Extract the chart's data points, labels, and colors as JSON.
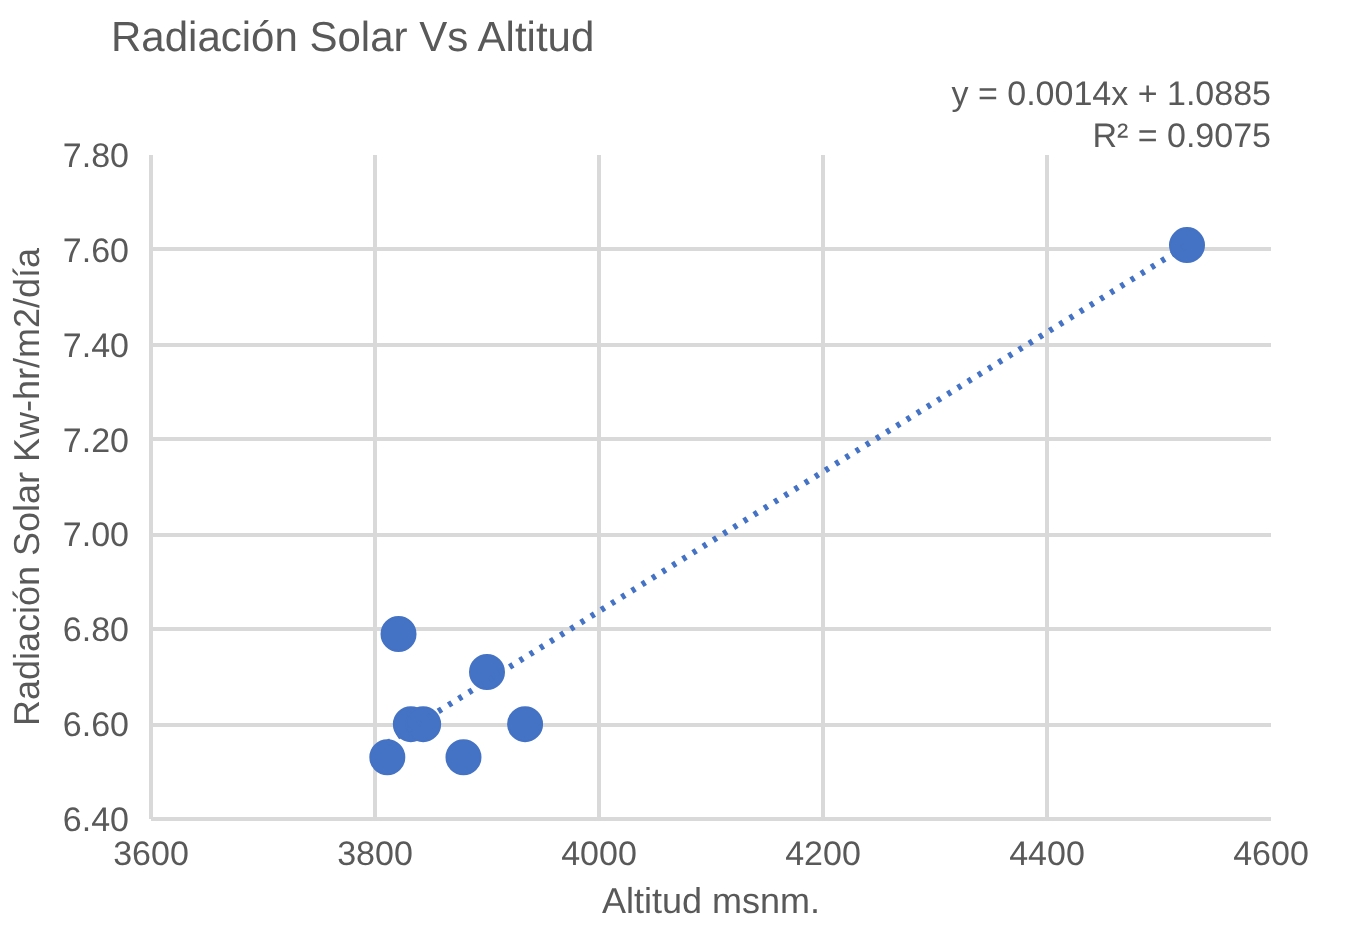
{
  "chart_data": {
    "type": "scatter",
    "title": "Radiación Solar Vs Altitud",
    "xlabel": "Altitud msnm.",
    "ylabel": "Radiación Solar Kw-hr/m2/día",
    "annotations": [
      "y = 0.0014x + 1.0885",
      "R² = 0.9075"
    ],
    "series": [
      {
        "color": "#4472c4",
        "x": [
          3821,
          3900,
          3832,
          3843,
          3811,
          3879,
          3934,
          4525
        ],
        "values": [
          6.79,
          6.71,
          6.6,
          6.6,
          6.53,
          6.53,
          6.6,
          7.61
        ],
        "marker": "circle"
      },
      {
        "type": "line",
        "color": "#4472c4",
        "x": [
          3811,
          4525
        ],
        "values": [
          6.56,
          7.61
        ],
        "line_style": "dotted"
      }
    ],
    "xlim": [
      3600,
      4600
    ],
    "xticks": [
      3600,
      3800,
      4000,
      4200,
      4400,
      4600
    ],
    "ylim": [
      6.4,
      7.8
    ],
    "yticks": [
      {
        "value": 6.4,
        "label": "6.40"
      },
      {
        "value": 6.6,
        "label": "6.60"
      },
      {
        "value": 6.8,
        "label": "6.80"
      },
      {
        "value": 7.0,
        "label": "7.00"
      },
      {
        "value": 7.2,
        "label": "7.20"
      },
      {
        "value": 7.4,
        "label": "7.40"
      },
      {
        "value": 7.6,
        "label": "7.60"
      },
      {
        "value": 7.8,
        "label": "7.80"
      }
    ],
    "grid": true
  }
}
